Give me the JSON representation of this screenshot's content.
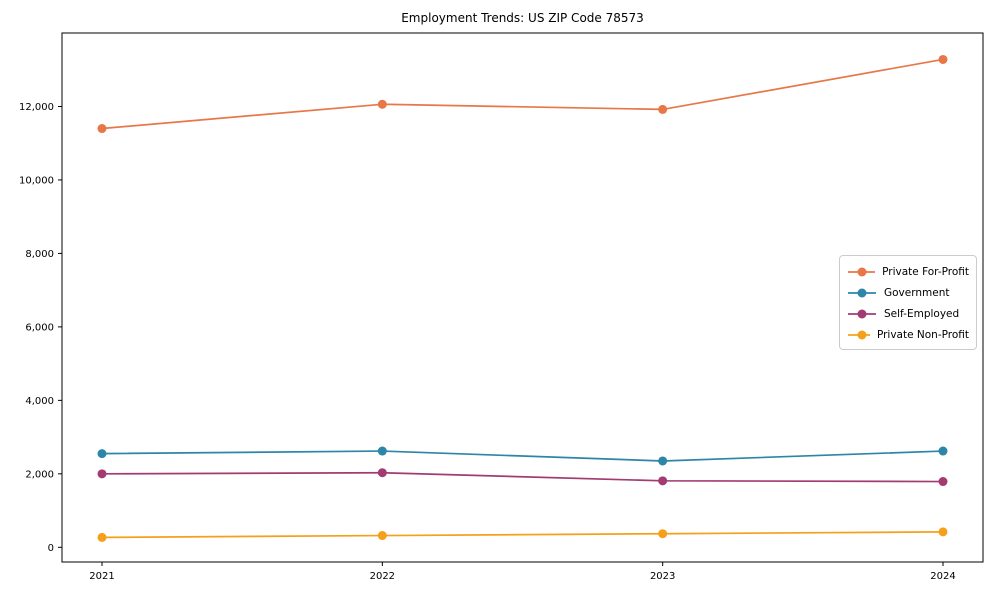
{
  "chart_data": {
    "type": "line",
    "title": "Employment Trends: US ZIP Code 78573",
    "xlabel": "",
    "ylabel": "",
    "x": [
      "2021",
      "2022",
      "2023",
      "2024"
    ],
    "series": [
      {
        "name": "Private For-Profit",
        "color": "#E87747",
        "values": [
          11400,
          12060,
          11920,
          13280
        ]
      },
      {
        "name": "Government",
        "color": "#2D86A8",
        "values": [
          2550,
          2620,
          2350,
          2620
        ]
      },
      {
        "name": "Self-Employed",
        "color": "#A23B72",
        "values": [
          2000,
          2030,
          1810,
          1790
        ]
      },
      {
        "name": "Private Non-Profit",
        "color": "#F5A01B",
        "values": [
          270,
          320,
          370,
          420
        ]
      }
    ],
    "ylim": [
      -400,
      14000
    ],
    "yticks": [
      0,
      2000,
      4000,
      6000,
      8000,
      10000,
      12000
    ],
    "grid": false,
    "legend_position": "center-right"
  }
}
